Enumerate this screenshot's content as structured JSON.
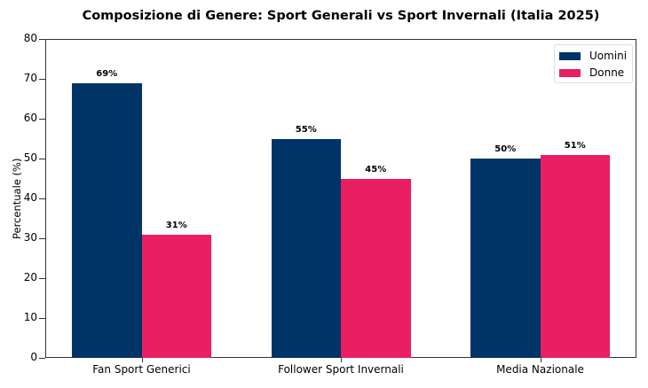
{
  "chart_data": {
    "type": "bar",
    "title": "Composizione di Genere: Sport Generali vs Sport Invernali (Italia 2025)",
    "xlabel": "",
    "ylabel": "Percentuale (%)",
    "ylim": [
      0,
      80
    ],
    "yticks": [
      "0",
      "10",
      "20",
      "30",
      "40",
      "50",
      "60",
      "70",
      "80"
    ],
    "categories": [
      "Fan Sport Generici",
      "Follower Sport Invernali",
      "Media Nazionale"
    ],
    "series": [
      {
        "name": "Uomini",
        "color": "#003366",
        "values": [
          69,
          55,
          50
        ],
        "labels": [
          "69%",
          "55%",
          "50%"
        ]
      },
      {
        "name": "Donne",
        "color": "#E91E63",
        "values": [
          31,
          45,
          51
        ],
        "labels": [
          "31%",
          "45%",
          "51%"
        ]
      }
    ],
    "legend_position": "upper right",
    "grid": false
  }
}
